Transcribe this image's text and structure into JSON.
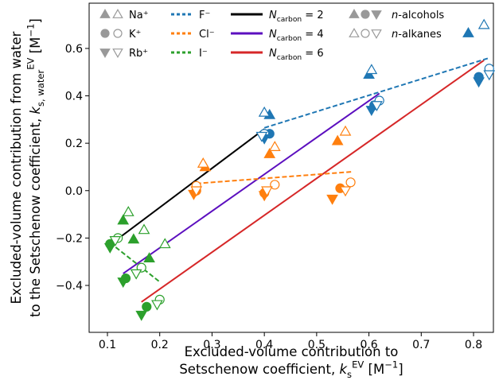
{
  "chart_data": {
    "type": "scatter",
    "xlim": [
      0.065,
      0.838
    ],
    "ylim": [
      -0.598,
      0.791
    ],
    "xticks": [
      0.1,
      0.2,
      0.3,
      0.4,
      0.5,
      0.6,
      0.7,
      0.8
    ],
    "yticks": [
      {
        "value": -0.4,
        "label": "−0.4"
      },
      {
        "value": -0.2,
        "label": "−0.2"
      },
      {
        "value": 0.0,
        "label": "0.0"
      },
      0.2,
      0.4,
      0.6
    ],
    "x_label": [
      [
        {
          "t": "Excluded-volume contribution to"
        }
      ],
      [
        {
          "t": "Setschenow coefficient, "
        },
        {
          "t": "k",
          "style": "italic"
        },
        {
          "t": "s",
          "shift": "sub"
        },
        {
          "t": "EV",
          "shift": "sup"
        },
        {
          "t": " [M"
        },
        {
          "t": "−1",
          "shift": "sup"
        },
        {
          "t": "]"
        }
      ]
    ],
    "y_label": [
      [
        {
          "t": "Excluded-volume contribution from water"
        }
      ],
      [
        {
          "t": "to the Setschenow coefficient, "
        },
        {
          "t": "k",
          "style": "italic"
        },
        {
          "t": "s, water",
          "shift": "sub"
        },
        {
          "t": "EV",
          "shift": "sup"
        },
        {
          "t": " [M"
        },
        {
          "t": "−1",
          "shift": "sup"
        },
        {
          "t": "]"
        }
      ]
    ],
    "cations": [
      {
        "name": "Na⁺",
        "marker": "triangle-up"
      },
      {
        "name": "K⁺",
        "marker": "circle"
      },
      {
        "name": "Rb⁺",
        "marker": "triangle-down"
      }
    ],
    "anions": [
      {
        "name": "F⁻",
        "color": "#1f77b4",
        "fit_x": [
          0.4,
          0.83
        ],
        "fit_y": [
          0.265,
          0.56
        ]
      },
      {
        "name": "Cl⁻",
        "color": "#ff7f0e",
        "fit_x": [
          0.27,
          0.57
        ],
        "fit_y": [
          0.03,
          0.08
        ]
      },
      {
        "name": "I⁻",
        "color": "#2ca02c",
        "fit_x": [
          0.105,
          0.2
        ],
        "fit_y": [
          -0.22,
          -0.385
        ]
      }
    ],
    "types": [
      {
        "name": [
          {
            "t": "n",
            "style": "italic"
          },
          {
            "t": "-alcohols"
          }
        ],
        "filled": true
      },
      {
        "name": [
          {
            "t": "n",
            "style": "italic"
          },
          {
            "t": "-alkanes"
          }
        ],
        "filled": false
      }
    ],
    "fits": [
      {
        "name": [
          {
            "t": "N",
            "style": "italic"
          },
          {
            "t": "carbon",
            "shift": "sub"
          },
          {
            "t": " = 2"
          }
        ],
        "color": "#000000",
        "x": [
          0.11,
          0.4
        ],
        "y": [
          -0.22,
          0.26
        ]
      },
      {
        "name": [
          {
            "t": "N",
            "style": "italic"
          },
          {
            "t": "carbon",
            "shift": "sub"
          },
          {
            "t": " = 4"
          }
        ],
        "color": "#5c0fbf",
        "x": [
          0.13,
          0.62
        ],
        "y": [
          -0.35,
          0.41
        ]
      },
      {
        "name": [
          {
            "t": "N",
            "style": "italic"
          },
          {
            "t": "carbon",
            "shift": "sub"
          },
          {
            "t": " = 6"
          }
        ],
        "color": "#d62728",
        "x": [
          0.165,
          0.82
        ],
        "y": [
          -0.47,
          0.55
        ]
      }
    ],
    "series": [
      {
        "anion": 0,
        "cation": 0,
        "filled": true,
        "x": [
          0.41,
          0.6,
          0.79
        ],
        "y": [
          0.32,
          0.49,
          0.665
        ]
      },
      {
        "anion": 0,
        "cation": 0,
        "filled": false,
        "x": [
          0.4,
          0.605,
          0.82
        ],
        "y": [
          0.33,
          0.51,
          0.7
        ]
      },
      {
        "anion": 0,
        "cation": 1,
        "filled": true,
        "x": [
          0.41,
          0.61,
          0.81
        ],
        "y": [
          0.24,
          0.36,
          0.48
        ]
      },
      {
        "anion": 0,
        "cation": 1,
        "filled": false,
        "x": [
          0.4,
          0.62,
          0.83
        ],
        "y": [
          0.24,
          0.38,
          0.515
        ]
      },
      {
        "anion": 0,
        "cation": 2,
        "filled": true,
        "x": [
          0.4,
          0.605,
          0.81
        ],
        "y": [
          0.22,
          0.34,
          0.46
        ]
      },
      {
        "anion": 0,
        "cation": 2,
        "filled": false,
        "x": [
          0.395,
          0.615,
          0.83
        ],
        "y": [
          0.23,
          0.36,
          0.49
        ]
      },
      {
        "anion": 1,
        "cation": 0,
        "filled": true,
        "x": [
          0.287,
          0.41,
          0.54
        ],
        "y": [
          0.1,
          0.155,
          0.21
        ]
      },
      {
        "anion": 1,
        "cation": 0,
        "filled": false,
        "x": [
          0.283,
          0.42,
          0.555
        ],
        "y": [
          0.115,
          0.185,
          0.25
        ]
      },
      {
        "anion": 1,
        "cation": 1,
        "filled": true,
        "x": [
          0.27,
          0.4,
          0.545
        ],
        "y": [
          0.0,
          -0.01,
          0.01
        ]
      },
      {
        "anion": 1,
        "cation": 1,
        "filled": false,
        "x": [
          0.27,
          0.42,
          0.565
        ],
        "y": [
          0.02,
          0.025,
          0.035
        ]
      },
      {
        "anion": 1,
        "cation": 2,
        "filled": true,
        "x": [
          0.265,
          0.4,
          0.53
        ],
        "y": [
          -0.015,
          -0.02,
          -0.035
        ]
      },
      {
        "anion": 1,
        "cation": 2,
        "filled": false,
        "x": [
          0.27,
          0.405,
          0.555
        ],
        "y": [
          0.0,
          0.0,
          0.0
        ]
      },
      {
        "anion": 2,
        "cation": 0,
        "filled": true,
        "x": [
          0.13,
          0.15,
          0.18
        ],
        "y": [
          -0.125,
          -0.205,
          -0.285
        ]
      },
      {
        "anion": 2,
        "cation": 0,
        "filled": false,
        "x": [
          0.14,
          0.17,
          0.21
        ],
        "y": [
          -0.09,
          -0.165,
          -0.225
        ]
      },
      {
        "anion": 2,
        "cation": 1,
        "filled": true,
        "x": [
          0.105,
          0.135,
          0.175
        ],
        "y": [
          -0.225,
          -0.37,
          -0.49
        ]
      },
      {
        "anion": 2,
        "cation": 1,
        "filled": false,
        "x": [
          0.12,
          0.165,
          0.2
        ],
        "y": [
          -0.2,
          -0.325,
          -0.46
        ]
      },
      {
        "anion": 2,
        "cation": 2,
        "filled": true,
        "x": [
          0.105,
          0.13,
          0.165
        ],
        "y": [
          -0.24,
          -0.385,
          -0.525
        ]
      },
      {
        "anion": 2,
        "cation": 2,
        "filled": false,
        "x": [
          0.115,
          0.155,
          0.195
        ],
        "y": [
          -0.21,
          -0.35,
          -0.48
        ]
      }
    ]
  }
}
